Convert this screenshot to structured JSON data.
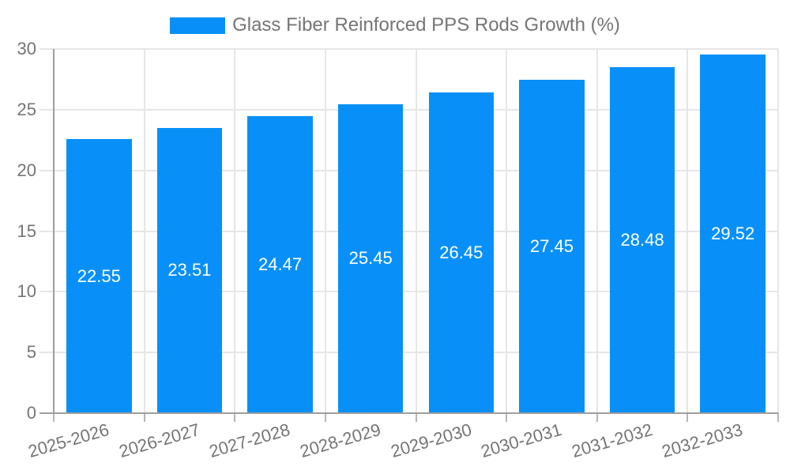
{
  "page": {
    "background": "#ffffff"
  },
  "legend": {
    "label": "Glass Fiber Reinforced PPS Rods Growth (%)",
    "position": "top-center"
  },
  "chart_data": {
    "type": "bar",
    "title": "Glass Fiber Reinforced PPS Rods Growth (%)",
    "categories": [
      "2025-2026",
      "2026-2027",
      "2027-2028",
      "2028-2029",
      "2029-2030",
      "2030-2031",
      "2031-2032",
      "2032-2033"
    ],
    "values": [
      22.55,
      23.51,
      24.47,
      25.45,
      26.45,
      27.45,
      28.48,
      29.52
    ],
    "value_labels": [
      "22.55",
      "23.51",
      "24.47",
      "25.45",
      "26.45",
      "27.45",
      "28.48",
      "29.52"
    ],
    "xlabel": "",
    "ylabel": "",
    "ylim": [
      0,
      30
    ],
    "yticks": [
      0,
      5,
      10,
      15,
      20,
      25,
      30
    ],
    "ytick_labels": [
      "0",
      "5",
      "10",
      "15",
      "20",
      "25",
      "30"
    ],
    "grid": true,
    "legend_position": "top",
    "value_label_position": "inside-center",
    "colors": {
      "bar": "#0890f8",
      "value_label": "#ffffff",
      "axis_text": "#757575",
      "gridline": "#e6e6e6",
      "axis_line": "#9e9e9e",
      "tick_mark": "#b5b5b5"
    }
  }
}
